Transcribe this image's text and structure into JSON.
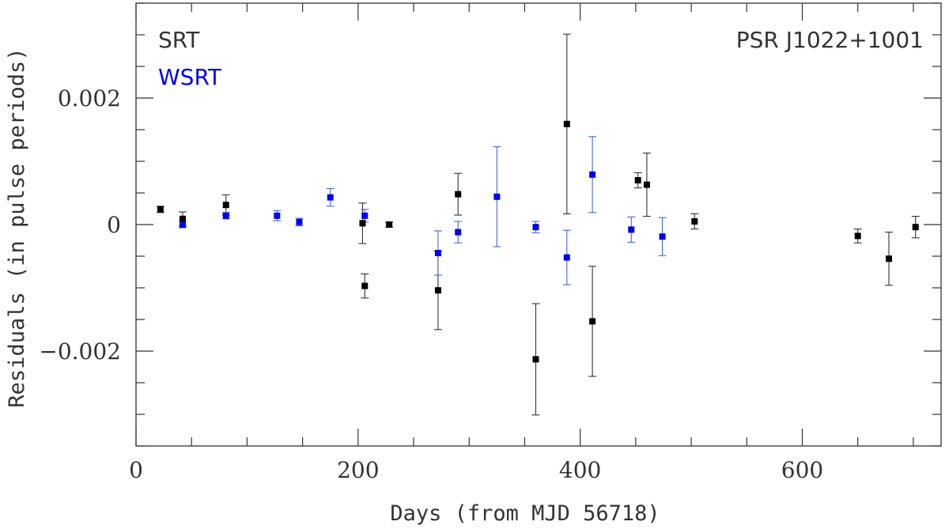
{
  "chart_data": {
    "type": "scatter",
    "title": "",
    "annotation": "PSR J1022+1001",
    "xlabel": "Days (from MJD 56718)",
    "ylabel": "Residuals (in pulse periods)",
    "xlim": [
      0,
      725
    ],
    "ylim": [
      -0.0035,
      0.0035
    ],
    "x_ticks": [
      0,
      200,
      400,
      600
    ],
    "x_tick_labels": [
      "0",
      "200",
      "400",
      "600"
    ],
    "y_ticks": [
      -0.002,
      0,
      0.002
    ],
    "y_tick_labels": [
      "−0.002",
      "0",
      "0.002"
    ],
    "grid": false,
    "legend_position": "top-left",
    "series": [
      {
        "name": "SRT",
        "color": "#000000",
        "errorbar_color": "#333333",
        "points": [
          {
            "x": 22,
            "y": 0.00024,
            "err": 5e-05
          },
          {
            "x": 42,
            "y": 9e-05,
            "err": 0.00011
          },
          {
            "x": 81,
            "y": 0.00031,
            "err": 0.00016
          },
          {
            "x": 204,
            "y": 2e-05,
            "err": 0.00032
          },
          {
            "x": 206,
            "y": -0.00097,
            "err": 0.00019
          },
          {
            "x": 228,
            "y": 0.0,
            "err": 4e-05
          },
          {
            "x": 272,
            "y": -0.00104,
            "err": 0.00062
          },
          {
            "x": 290,
            "y": 0.00048,
            "err": 0.00033
          },
          {
            "x": 360,
            "y": -0.00213,
            "err": 0.00088
          },
          {
            "x": 388,
            "y": 0.00159,
            "err": 0.00142
          },
          {
            "x": 411,
            "y": -0.00153,
            "err": 0.00087
          },
          {
            "x": 452,
            "y": 0.0007,
            "err": 0.00012
          },
          {
            "x": 460,
            "y": 0.00063,
            "err": 0.0005
          },
          {
            "x": 503,
            "y": 5e-05,
            "err": 0.00012
          },
          {
            "x": 650,
            "y": -0.00018,
            "err": 0.00011
          },
          {
            "x": 678,
            "y": -0.00054,
            "err": 0.00042
          },
          {
            "x": 702,
            "y": -4e-05,
            "err": 0.00017
          }
        ]
      },
      {
        "name": "WSRT",
        "color": "#0000ee",
        "errorbar_color": "#4466dd",
        "points": [
          {
            "x": 42,
            "y": 0.0,
            "err": 5e-05
          },
          {
            "x": 81,
            "y": 0.00014,
            "err": 5e-05
          },
          {
            "x": 127,
            "y": 0.00014,
            "err": 8e-05
          },
          {
            "x": 147,
            "y": 4e-05,
            "err": 6e-05
          },
          {
            "x": 175,
            "y": 0.00043,
            "err": 0.00014
          },
          {
            "x": 206,
            "y": 0.00014,
            "err": 0.0001
          },
          {
            "x": 272,
            "y": -0.00045,
            "err": 0.00035
          },
          {
            "x": 290,
            "y": -0.00012,
            "err": 0.00017
          },
          {
            "x": 325,
            "y": 0.00044,
            "err": 0.00079
          },
          {
            "x": 360,
            "y": -4e-05,
            "err": 9e-05
          },
          {
            "x": 388,
            "y": -0.00052,
            "err": 0.00043
          },
          {
            "x": 411,
            "y": 0.00079,
            "err": 0.0006
          },
          {
            "x": 446,
            "y": -8e-05,
            "err": 0.0002
          },
          {
            "x": 474,
            "y": -0.00019,
            "err": 0.0003
          }
        ]
      }
    ]
  }
}
